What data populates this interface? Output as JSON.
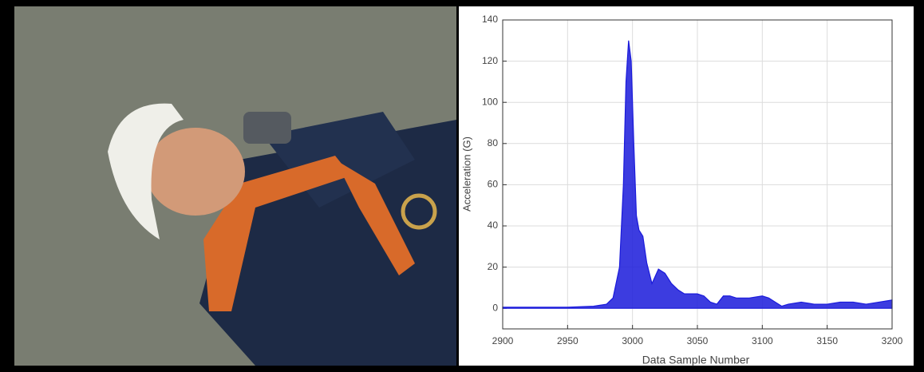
{
  "chart_data": {
    "type": "area",
    "x_label": "Data Sample Number",
    "y_label": "Acceleration (G)",
    "x": [
      2900,
      2950,
      2970,
      2980,
      2985,
      2990,
      2993,
      2995,
      2997,
      2999,
      3001,
      3003,
      3005,
      3008,
      3011,
      3015,
      3020,
      3025,
      3030,
      3035,
      3040,
      3045,
      3050,
      3055,
      3060,
      3065,
      3070,
      3075,
      3080,
      3090,
      3100,
      3105,
      3110,
      3115,
      3120,
      3130,
      3140,
      3150,
      3160,
      3170,
      3180,
      3190,
      3200
    ],
    "series": [
      {
        "color": "#1a1adb",
        "values": [
          0.5,
          0.5,
          1,
          2,
          5,
          20,
          60,
          110,
          130,
          120,
          80,
          45,
          38,
          35,
          22,
          12,
          19,
          17,
          12,
          9,
          7,
          7,
          7,
          6,
          3,
          2,
          6,
          6,
          5,
          5,
          6,
          5,
          3,
          1,
          2,
          3,
          2,
          2,
          3,
          3,
          2,
          3,
          4
        ]
      }
    ],
    "xlim": [
      2900,
      3200
    ],
    "xticks": [
      2900,
      2950,
      3000,
      3050,
      3100,
      3150,
      3200
    ],
    "ylim": [
      -10,
      140
    ],
    "yticks": [
      0,
      20,
      40,
      60,
      80,
      100,
      120,
      140
    ],
    "grid": true
  }
}
